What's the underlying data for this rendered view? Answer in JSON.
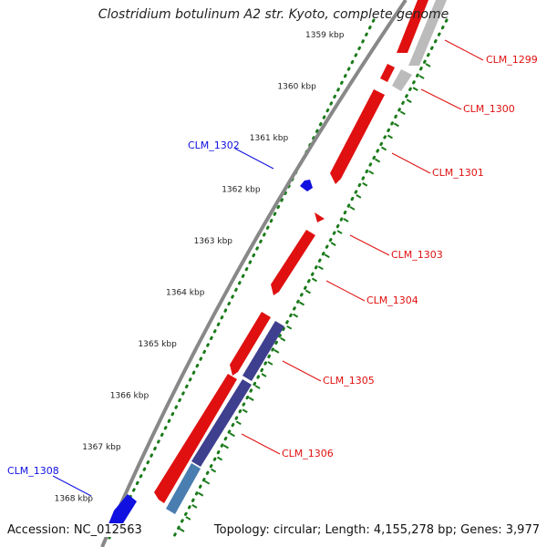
{
  "title": "Clostridium botulinum A2 str. Kyoto, complete genome",
  "accession": "Accession: NC_012563",
  "topology": "Topology: circular; Length: 4,155,278 bp; Genes: 3,977",
  "ticks": [
    {
      "kbp": 1359,
      "label": "1359 kbp"
    },
    {
      "kbp": 1360,
      "label": "1360 kbp"
    },
    {
      "kbp": 1361,
      "label": "1361 kbp"
    },
    {
      "kbp": 1362,
      "label": "1362 kbp"
    },
    {
      "kbp": 1363,
      "label": "1363 kbp"
    },
    {
      "kbp": 1364,
      "label": "1364 kbp"
    },
    {
      "kbp": 1365,
      "label": "1365 kbp"
    },
    {
      "kbp": 1366,
      "label": "1366 kbp"
    },
    {
      "kbp": 1367,
      "label": "1367 kbp"
    },
    {
      "kbp": 1368,
      "label": "1368 kbp"
    }
  ],
  "genes": [
    {
      "name": "CLM_1299",
      "strand": "forward",
      "color": "#e01010"
    },
    {
      "name": "CLM_1300",
      "strand": "forward",
      "color": "#e01010"
    },
    {
      "name": "CLM_1301",
      "strand": "forward",
      "color": "#e01010"
    },
    {
      "name": "CLM_1302",
      "strand": "reverse",
      "color": "#1010e0"
    },
    {
      "name": "CLM_1303",
      "strand": "forward",
      "color": "#e01010"
    },
    {
      "name": "CLM_1304",
      "strand": "forward",
      "color": "#e01010"
    },
    {
      "name": "CLM_1305",
      "strand": "forward",
      "color": "#e01010"
    },
    {
      "name": "CLM_1306",
      "strand": "forward",
      "color": "#e01010"
    },
    {
      "name": "CLM_1308",
      "strand": "reverse",
      "color": "#1010e0"
    }
  ],
  "colors": {
    "forward_gene": "#e01010",
    "reverse_gene": "#1010e0",
    "feature_purple": "#3f3f8f",
    "feature_blue": "#4a7db0",
    "feature_gray": "#bbbbbb",
    "backbone": "#888888",
    "tick_dots": "#1a7a1a"
  }
}
